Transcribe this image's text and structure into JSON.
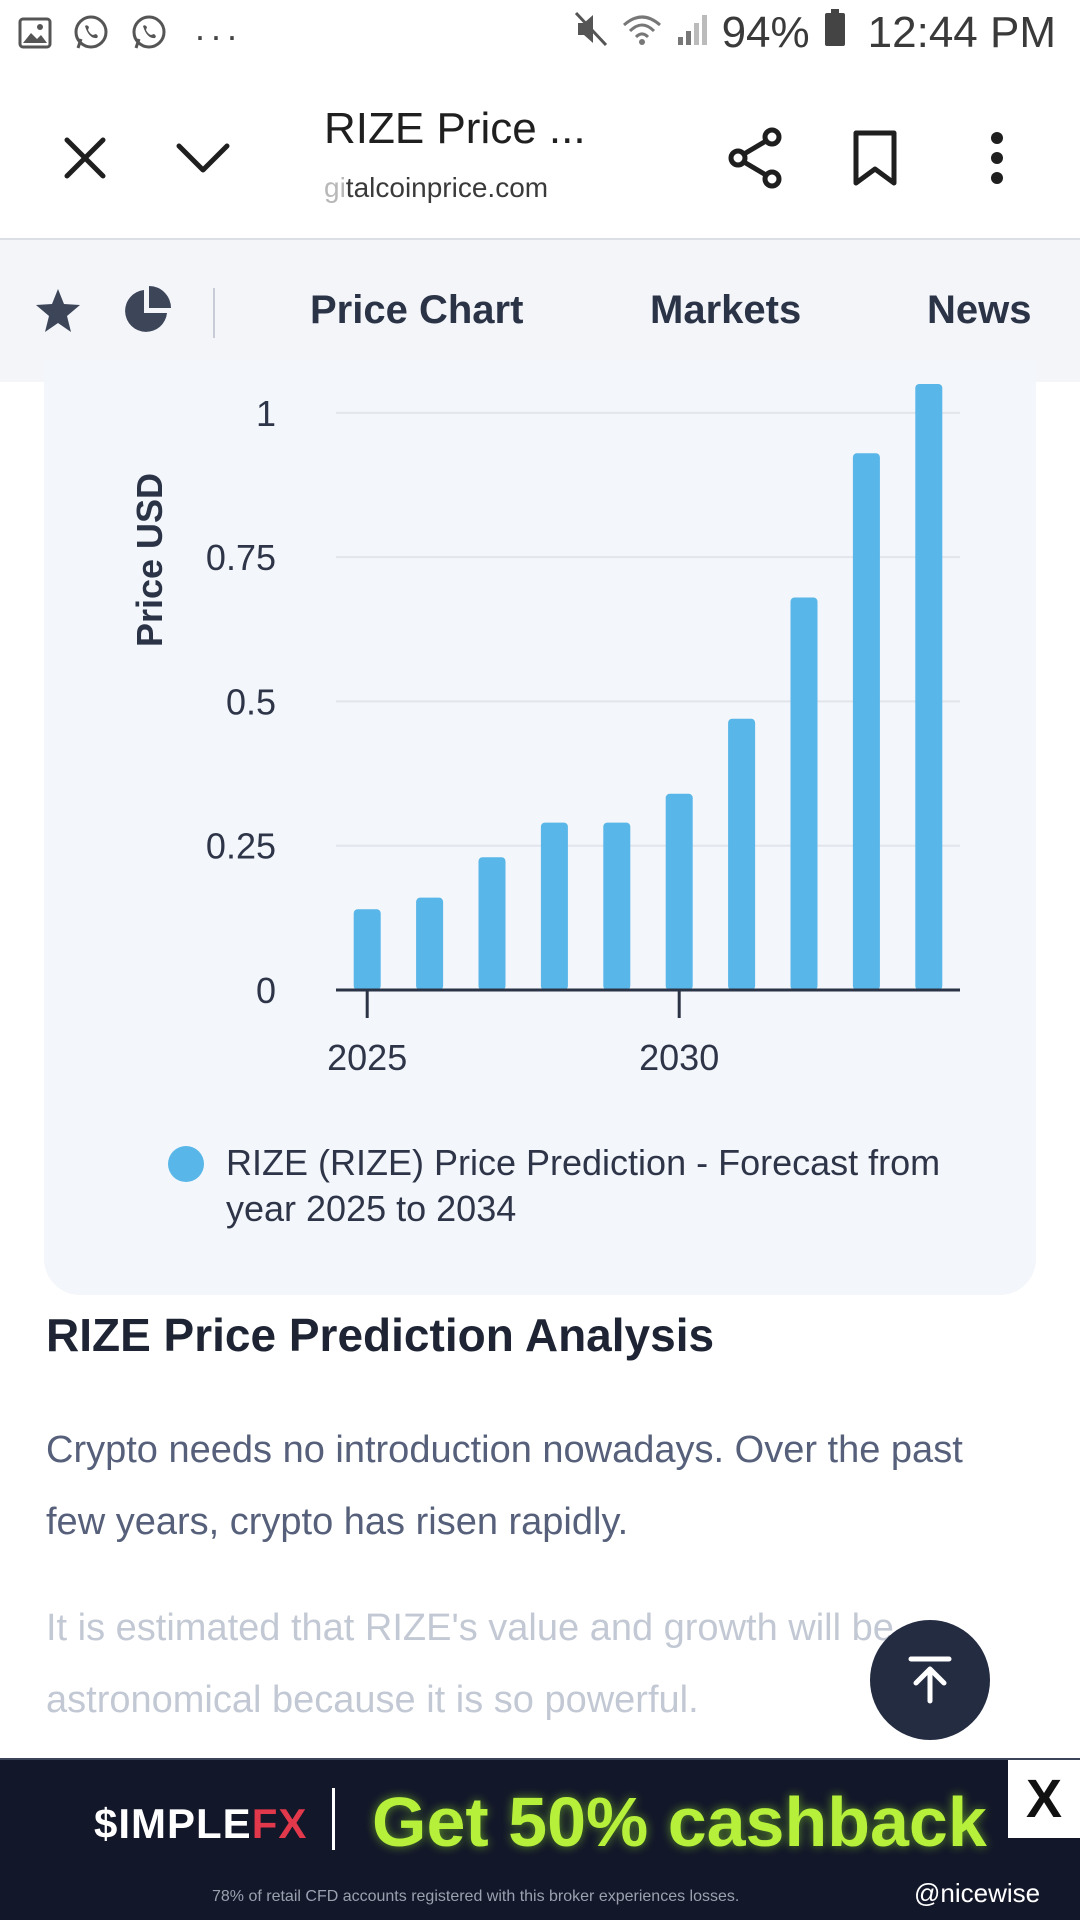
{
  "status_bar": {
    "notification_icons": [
      "gallery-icon",
      "whatsapp-icon",
      "whatsapp-icon"
    ],
    "overflow": "···",
    "battery_pct": "94%",
    "time": "12:44 PM"
  },
  "browser": {
    "title": "RIZE Price ...",
    "url_faded": "gi",
    "url": "talcoinprice.com"
  },
  "nav": {
    "tabs": [
      "Price Chart",
      "Markets",
      "News"
    ]
  },
  "chart_data": {
    "type": "bar",
    "title": "",
    "xlabel": "",
    "ylabel": "Price USD",
    "x": [
      2025,
      2026,
      2027,
      2028,
      2029,
      2030,
      2031,
      2032,
      2033,
      2034
    ],
    "values": [
      0.14,
      0.16,
      0.23,
      0.29,
      0.29,
      0.34,
      0.47,
      0.68,
      0.93,
      1.05
    ],
    "ylim": [
      0,
      1.05
    ],
    "y_ticks": [
      "0",
      "0.25",
      "0.5",
      "0.75",
      "1"
    ],
    "x_ticks": [
      "2025",
      "2030"
    ],
    "series_color": "#58b6e8",
    "grid": true,
    "legend": "RIZE (RIZE) Price Prediction - Forecast from year 2025 to 2034"
  },
  "article": {
    "title": "RIZE Price Prediction Analysis",
    "para1": "Crypto needs no introduction nowadays. Over the past few years, crypto has risen rapidly.",
    "para2": "It is estimated that RIZE's value and growth will be astronomical because it is so powerful."
  },
  "ad": {
    "brand_prefix": "$IMPLE",
    "brand_suffix": "FX",
    "cta": "Get 50% cashback",
    "close": "X",
    "disclaimer": "78% of retail CFD accounts registered with this broker experiences losses.",
    "credit": "@nicewise"
  }
}
